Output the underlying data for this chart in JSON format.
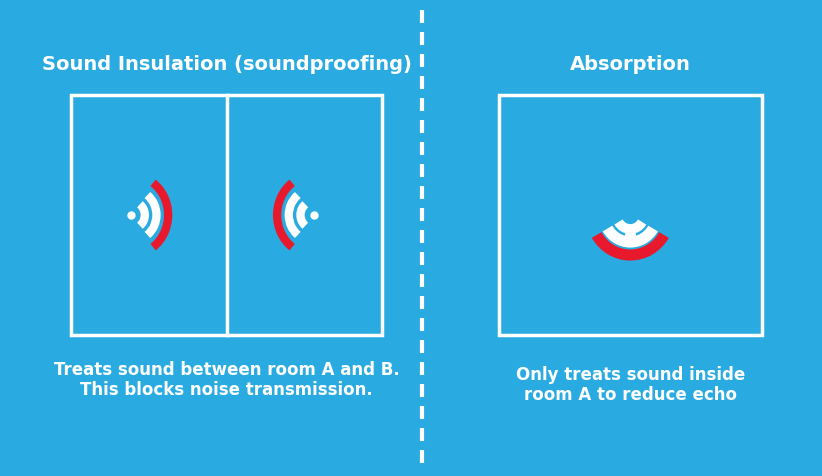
{
  "bg_color": "#29ABE2",
  "white": "#FFFFFF",
  "red": "#E8192C",
  "title_left": "Sound Insulation (soundproofing)",
  "title_right": "Absorption",
  "caption_left": "Treats sound between room A and B.\nThis blocks noise transmission.",
  "caption_right": "Only treats sound inside\nroom A to reduce echo",
  "font_size_title": 14,
  "font_size_caption": 12
}
